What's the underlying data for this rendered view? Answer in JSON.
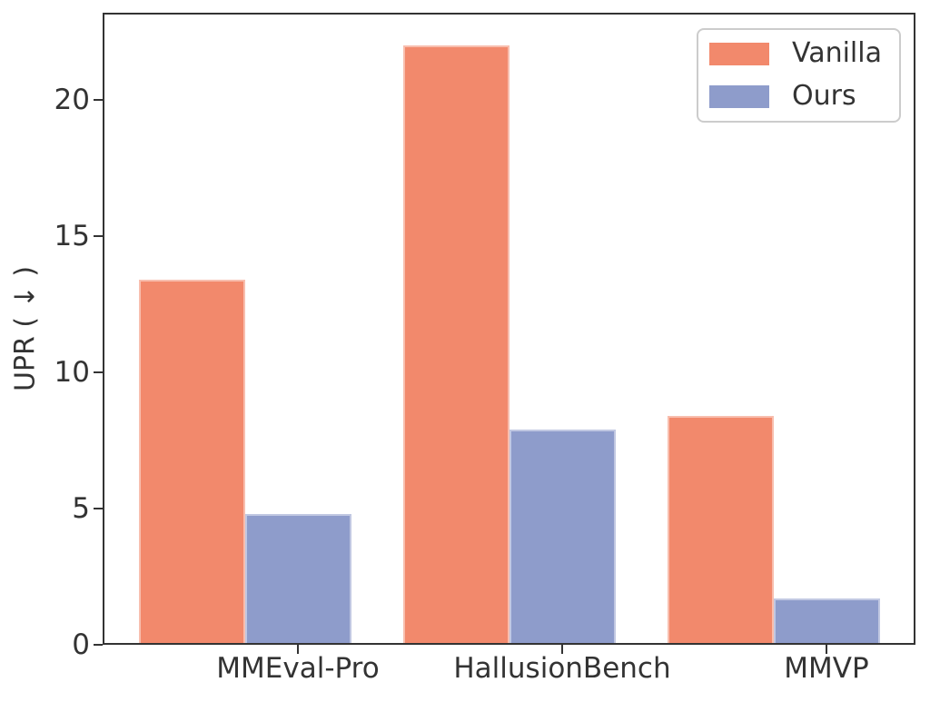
{
  "chart_data": {
    "type": "bar",
    "title": "",
    "xlabel": "",
    "ylabel": "UPR ( ↓ )",
    "categories": [
      "MMEval-Pro",
      "HallusionBench",
      "MMVP"
    ],
    "series": [
      {
        "name": "Vanilla",
        "color": "#F2896C",
        "values": [
          13.4,
          22.0,
          8.4
        ]
      },
      {
        "name": "Ours",
        "color": "#8E9CCB",
        "values": [
          4.8,
          7.9,
          1.7
        ]
      }
    ],
    "ylim": [
      0,
      23.2
    ],
    "yticks": [
      0,
      5,
      10,
      15,
      20
    ],
    "grid": false,
    "legend_position": "upper right"
  },
  "colors": {
    "axis": "#333333",
    "text": "#333333",
    "legend_border": "#cccccc",
    "background": "#ffffff"
  }
}
